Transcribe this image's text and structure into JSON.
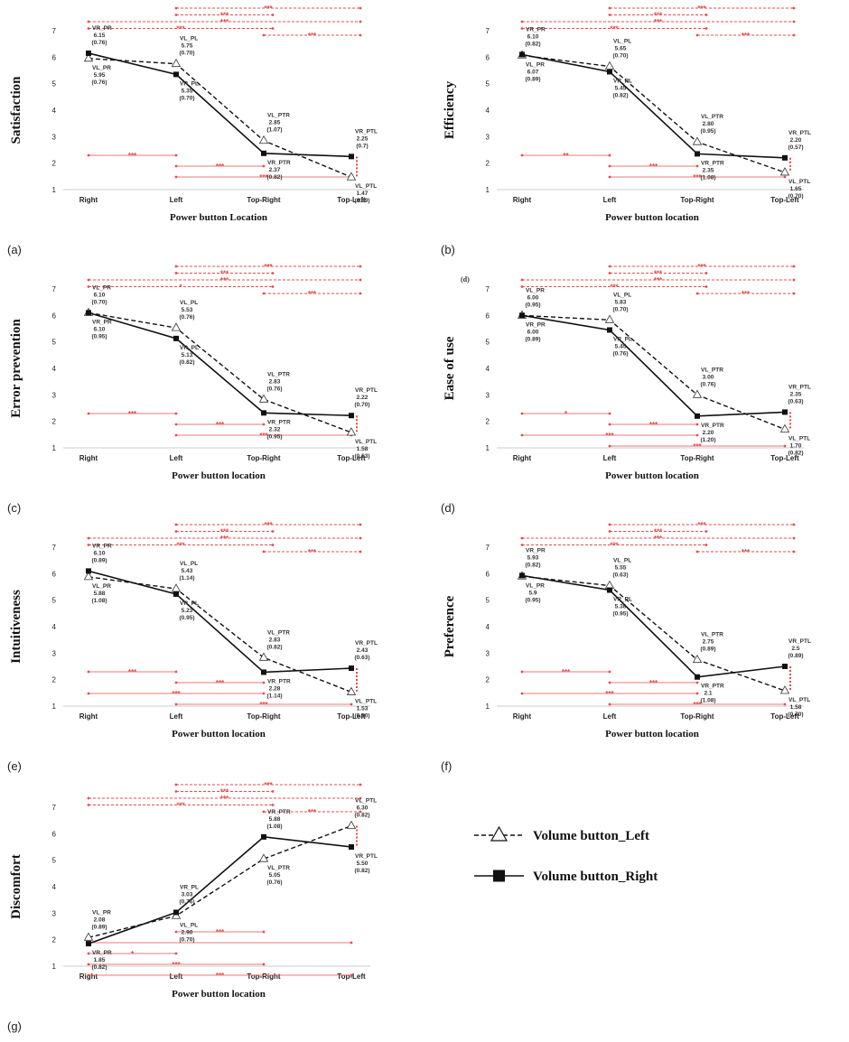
{
  "legend": {
    "left_label": "Volume button_Left",
    "right_label": "Volume button_Right"
  },
  "colors": {
    "significance": "#e84b4b",
    "line": "#111111",
    "axis": "#cccccc"
  },
  "chart_data": [
    {
      "panel": "(a)",
      "type": "line",
      "ylabel": "Satisfaction",
      "xlabel": "Power button Location",
      "categories": [
        "Right",
        "Left",
        "Top-Right",
        "Top-Left"
      ],
      "ylim": [
        1,
        7
      ],
      "yticks": [
        "1",
        "2",
        "3",
        "4",
        "5",
        "6",
        "7"
      ],
      "series": [
        {
          "name": "Volume button_Left",
          "values": [
            5.95,
            5.75,
            2.85,
            1.47
          ],
          "sd": [
            "(0.76)",
            "(0.70)",
            "(1.07)",
            "(0.69)"
          ],
          "tags": [
            "VL_PR",
            "VL_PL",
            "VL_PTR",
            "VL_PTL"
          ]
        },
        {
          "name": "Volume button_Right",
          "values": [
            6.15,
            5.35,
            2.37,
            2.25
          ],
          "sd": [
            "(0.76)",
            "(0.70)",
            "(0.82)",
            "(0.7)"
          ],
          "tags": [
            "VR_PR",
            "VR_PL",
            "VR_PTR",
            "VR_PTL"
          ]
        }
      ],
      "value_labels": {
        "left": [
          "5.95",
          "5.75",
          "2.85",
          "1.47"
        ],
        "right": [
          "6.15",
          "5.35",
          "2.37",
          "2.25"
        ]
      },
      "sig_top": [
        [
          "1",
          "3",
          "***"
        ],
        [
          "1",
          "2",
          "***"
        ],
        [
          "0",
          "3",
          "***"
        ],
        [
          "0",
          "2",
          "***"
        ],
        [
          "2",
          "3",
          "***"
        ]
      ],
      "sig_bottom": [
        [
          "0",
          "1",
          "***"
        ],
        [
          "1",
          "2",
          "***"
        ],
        [
          "1",
          "3",
          "***"
        ]
      ],
      "sig_vert": [
        "3"
      ]
    },
    {
      "panel": "(b)",
      "type": "line",
      "ylabel": "Efficiency",
      "xlabel": "Power button location",
      "categories": [
        "Right",
        "Left",
        "Top-Right",
        "Top-Left"
      ],
      "ylim": [
        1,
        7
      ],
      "yticks": [
        "1",
        "2",
        "3",
        "4",
        "5",
        "6",
        "7"
      ],
      "series": [
        {
          "name": "Volume button_Left",
          "values": [
            6.07,
            5.65,
            2.8,
            1.65
          ],
          "sd": [
            "(0.89)",
            "(0.70)",
            "(0.95)",
            "(0.70)"
          ],
          "tags": [
            "VL_PR",
            "VL_PL",
            "VL_PTR",
            "VL_PTL"
          ]
        },
        {
          "name": "Volume button_Right",
          "values": [
            6.1,
            5.45,
            2.35,
            2.2
          ],
          "sd": [
            "(0.82)",
            "(0.82)",
            "(1.08)",
            "(0.57)"
          ],
          "tags": [
            "VR_PR",
            "VR_PL",
            "VR_PTR",
            "VR_PTL"
          ]
        }
      ],
      "value_labels": {
        "left": [
          "6.07",
          "5.65",
          "2.80",
          "1.65"
        ],
        "right": [
          "6.10",
          "5.45",
          "2.35",
          "2.20"
        ]
      },
      "sig_top": [
        [
          "1",
          "3",
          "***"
        ],
        [
          "1",
          "2",
          "***"
        ],
        [
          "0",
          "3",
          "***"
        ],
        [
          "0",
          "2",
          "***"
        ],
        [
          "2",
          "3",
          "***"
        ]
      ],
      "sig_bottom": [
        [
          "0",
          "1",
          "**"
        ],
        [
          "1",
          "2",
          "***"
        ],
        [
          "1",
          "3",
          "***"
        ]
      ],
      "sig_vert": [
        "3"
      ]
    },
    {
      "panel": "(c)",
      "type": "line",
      "ylabel": "Error prevention",
      "xlabel": "Power button location",
      "categories": [
        "Right",
        "Left",
        "Top-Right",
        "Top-Left"
      ],
      "ylim": [
        1,
        7
      ],
      "yticks": [
        "1",
        "2",
        "3",
        "4",
        "5",
        "6",
        "7"
      ],
      "series": [
        {
          "name": "Volume button_Left",
          "values": [
            6.1,
            5.53,
            2.83,
            1.58
          ],
          "sd": [
            "(0.70)",
            "(0.76)",
            "(0.76)",
            "(0.63)"
          ],
          "tags": [
            "VL_PR",
            "VL_PL",
            "VL_PTR",
            "VL_PTL"
          ]
        },
        {
          "name": "Volume button_Right",
          "values": [
            6.1,
            5.13,
            2.32,
            2.22
          ],
          "sd": [
            "(0.95)",
            "(0.82)",
            "(0.95)",
            "(0.70)"
          ],
          "tags": [
            "VR_PR",
            "VR_PL",
            "VR_PTR",
            "VR_PTL"
          ]
        }
      ],
      "value_labels": {
        "left": [
          "6.10",
          "5.53",
          "2.83",
          "1.58"
        ],
        "right": [
          "6.10",
          "5.13",
          "2.32",
          "2.22"
        ]
      },
      "sig_top": [
        [
          "1",
          "3",
          "***"
        ],
        [
          "1",
          "2",
          "***"
        ],
        [
          "0",
          "3",
          "***"
        ],
        [
          "0",
          "2",
          "*"
        ],
        [
          "2",
          "3",
          "***"
        ]
      ],
      "sig_bottom": [
        [
          "0",
          "1",
          "***"
        ],
        [
          "1",
          "2",
          "***"
        ],
        [
          "1",
          "3",
          "***"
        ]
      ],
      "sig_vert": [
        "3"
      ]
    },
    {
      "panel": "(d)",
      "type": "line",
      "ylabel": "Ease of use",
      "xlabel": "Power button location",
      "categories": [
        "Right",
        "Left",
        "Top-Right",
        "Top-Left"
      ],
      "ylim": [
        1,
        7
      ],
      "yticks": [
        "1",
        "2",
        "3",
        "4",
        "5",
        "6",
        "7"
      ],
      "corner_note": "(d)",
      "series": [
        {
          "name": "Volume button_Left",
          "values": [
            6.0,
            5.83,
            3.0,
            1.7
          ],
          "sd": [
            "(0.95)",
            "(0.70)",
            "(0.76)",
            "(0.82)"
          ],
          "tags": [
            "VL_PR",
            "VL_PL",
            "VL_PTR",
            "VL_PTL"
          ]
        },
        {
          "name": "Volume button_Right",
          "values": [
            6.0,
            5.45,
            2.2,
            2.35
          ],
          "sd": [
            "(0.89)",
            "(0.76)",
            "(1.20)",
            "(0.63)"
          ],
          "tags": [
            "VR_PR",
            "VR_PL",
            "VR_PTR",
            "VR_PTL"
          ]
        }
      ],
      "value_labels": {
        "left": [
          "6.00",
          "5.83",
          "3.00",
          "1.70"
        ],
        "right": [
          "6.00",
          "5.45",
          "2.20",
          "2.35"
        ]
      },
      "sig_top": [
        [
          "1",
          "3",
          "***"
        ],
        [
          "1",
          "2",
          "***"
        ],
        [
          "0",
          "3",
          "***"
        ],
        [
          "0",
          "2",
          "***"
        ],
        [
          "2",
          "3",
          "***"
        ]
      ],
      "sig_bottom": [
        [
          "0",
          "1",
          "*"
        ],
        [
          "1",
          "2",
          "***"
        ],
        [
          "0",
          "2",
          "***"
        ],
        [
          "1",
          "3",
          "***"
        ]
      ],
      "sig_vert": [
        "3"
      ]
    },
    {
      "panel": "(e)",
      "type": "line",
      "ylabel": "Intuitiveness",
      "xlabel": "Power button location",
      "categories": [
        "Right",
        "Left",
        "Top-Right",
        "Top-Left"
      ],
      "ylim": [
        1,
        7
      ],
      "yticks": [
        "1",
        "2",
        "3",
        "4",
        "5",
        "6",
        "7"
      ],
      "series": [
        {
          "name": "Volume button_Left",
          "values": [
            5.88,
            5.43,
            2.83,
            1.53
          ],
          "sd": [
            "(1.08)",
            "(1.14)",
            "(0.82)",
            "(0.10)"
          ],
          "tags": [
            "VL_PR",
            "VL_PL",
            "VL_PTR",
            "VL_PTL"
          ]
        },
        {
          "name": "Volume button_Right",
          "values": [
            6.1,
            5.23,
            2.28,
            2.43
          ],
          "sd": [
            "(0.89)",
            "(0.95)",
            "(1.14)",
            "(0.63)"
          ],
          "tags": [
            "VR_PR",
            "VR_PL",
            "VR_PTR",
            "VR_PTL"
          ]
        }
      ],
      "value_labels": {
        "left": [
          "5.88",
          "5.43",
          "2.83",
          "1.53"
        ],
        "right": [
          "6.10",
          "5.23",
          "2.28",
          "2.43"
        ]
      },
      "sig_top": [
        [
          "1",
          "3",
          "***"
        ],
        [
          "1",
          "2",
          "***"
        ],
        [
          "0",
          "3",
          "***"
        ],
        [
          "0",
          "2",
          "***"
        ],
        [
          "2",
          "3",
          "***"
        ]
      ],
      "sig_bottom": [
        [
          "0",
          "1",
          "***"
        ],
        [
          "1",
          "2",
          "***"
        ],
        [
          "0",
          "2",
          "***"
        ],
        [
          "1",
          "3",
          "***"
        ]
      ],
      "sig_vert": [
        "3"
      ]
    },
    {
      "panel": "(f)",
      "type": "line",
      "ylabel": "Preference",
      "xlabel": "Power button location",
      "categories": [
        "Right",
        "Left",
        "Top-Right",
        "Top-Left"
      ],
      "ylim": [
        1,
        7
      ],
      "yticks": [
        "1",
        "2",
        "3",
        "4",
        "5",
        "6",
        "7"
      ],
      "series": [
        {
          "name": "Volume button_Left",
          "values": [
            5.9,
            5.55,
            2.75,
            1.58
          ],
          "sd": [
            "(0.95)",
            "(0.63)",
            "(0.89)",
            "(0.70)"
          ],
          "tags": [
            "VL_PR",
            "VL_PL",
            "VL_PTR",
            "VL_PTL"
          ]
        },
        {
          "name": "Volume button_Right",
          "values": [
            5.93,
            5.38,
            2.1,
            2.5
          ],
          "sd": [
            "(0.82)",
            "(0.95)",
            "(1.08)",
            "(0.89)"
          ],
          "tags": [
            "VR_PR",
            "VR_PL",
            "VR_PTR",
            "VR_PTL"
          ]
        }
      ],
      "value_labels": {
        "left": [
          "5.9",
          "5.55",
          "2.75",
          "1.58"
        ],
        "right": [
          "5.93",
          "5.38",
          "2.1",
          "2.5"
        ]
      },
      "sig_top": [
        [
          "1",
          "3",
          "***"
        ],
        [
          "1",
          "2",
          "***"
        ],
        [
          "0",
          "3",
          "***"
        ],
        [
          "0",
          "2",
          "***"
        ],
        [
          "2",
          "3",
          "***"
        ]
      ],
      "sig_bottom": [
        [
          "0",
          "1",
          "***"
        ],
        [
          "1",
          "2",
          "***"
        ],
        [
          "0",
          "2",
          "***"
        ],
        [
          "1",
          "3",
          "***"
        ]
      ],
      "sig_vert": [
        "3"
      ]
    },
    {
      "panel": "(g)",
      "type": "line",
      "ylabel": "Discomfort",
      "xlabel": "Power button location",
      "categories": [
        "Right",
        "Left",
        "Top-Right",
        "Top-Left"
      ],
      "ylim": [
        1,
        7
      ],
      "yticks": [
        "1",
        "2",
        "3",
        "4",
        "5",
        "6",
        "7"
      ],
      "series": [
        {
          "name": "Volume button_Left",
          "values": [
            2.08,
            2.9,
            5.05,
            6.3
          ],
          "sd": [
            "(0.89)",
            "(0.70)",
            "(0.76)",
            "(0.82)"
          ],
          "tags": [
            "VL_PR",
            "VL_PL",
            "VL_PTR",
            "VL_PTL"
          ]
        },
        {
          "name": "Volume button_Right",
          "values": [
            1.85,
            3.03,
            5.88,
            5.5
          ],
          "sd": [
            "(0.82)",
            "(0.76)",
            "(1.08)",
            "(0.82)"
          ],
          "tags": [
            "VR_PR",
            "VR_PL",
            "VR_PTR",
            "VR_PTL"
          ]
        }
      ],
      "value_labels": {
        "left": [
          "2.08",
          "2.90",
          "5.05",
          "6.30"
        ],
        "right": [
          "1.85",
          "3.03",
          "5.88",
          "5.50"
        ]
      },
      "sig_top": [
        [
          "1",
          "3",
          "***"
        ],
        [
          "1",
          "2",
          "***"
        ],
        [
          "0",
          "3",
          "***"
        ],
        [
          "0",
          "2",
          "***"
        ],
        [
          "2",
          "3",
          "***"
        ]
      ],
      "sig_bottom": [
        [
          "1",
          "2",
          "***"
        ],
        [
          "0",
          "3",
          ""
        ],
        [
          "0",
          "1",
          "*"
        ],
        [
          "0",
          "2",
          "***"
        ],
        [
          "0",
          "3",
          "***"
        ]
      ],
      "sig_vert": [
        "3"
      ]
    }
  ]
}
